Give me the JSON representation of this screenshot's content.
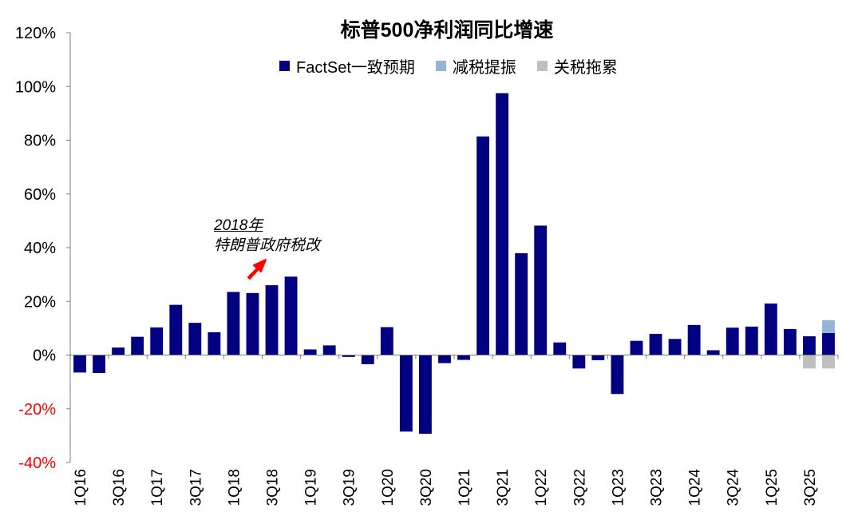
{
  "chart_data": {
    "type": "bar",
    "title": "标普500净利润同比增速",
    "categories": [
      "1Q16",
      "2Q16",
      "3Q16",
      "4Q16",
      "1Q17",
      "2Q17",
      "3Q17",
      "4Q17",
      "1Q18",
      "2Q18",
      "3Q18",
      "4Q18",
      "1Q19",
      "2Q19",
      "3Q19",
      "4Q19",
      "1Q20",
      "2Q20",
      "3Q20",
      "4Q20",
      "1Q21",
      "2Q21",
      "3Q21",
      "4Q21",
      "1Q22",
      "2Q22",
      "3Q22",
      "4Q22",
      "1Q23",
      "2Q23",
      "3Q23",
      "4Q23",
      "1Q24",
      "2Q24",
      "3Q24",
      "4Q24",
      "1Q25",
      "2Q25",
      "3Q25",
      "4Q25"
    ],
    "x_tick_labels": [
      "1Q16",
      "3Q16",
      "1Q17",
      "3Q17",
      "1Q18",
      "3Q18",
      "1Q19",
      "3Q19",
      "1Q20",
      "3Q20",
      "1Q21",
      "3Q21",
      "1Q22",
      "3Q22",
      "1Q23",
      "3Q23",
      "1Q24",
      "3Q24",
      "1Q25",
      "3Q25"
    ],
    "series": [
      {
        "name": "FactSet一致预期",
        "color": "#000080",
        "values": [
          -6.5,
          -6.7,
          2.8,
          6.8,
          10.3,
          18.7,
          12.0,
          8.5,
          23.5,
          23.1,
          26.0,
          29.2,
          2.1,
          3.6,
          -0.7,
          -3.4,
          10.4,
          -28.5,
          -29.3,
          -3.0,
          -1.8,
          81.4,
          97.5,
          37.9,
          48.2,
          4.7,
          -5.0,
          -1.9,
          -14.5,
          5.3,
          7.9,
          6.0,
          11.2,
          1.8,
          10.2,
          10.6,
          19.2,
          9.7,
          7.0,
          8.2
        ]
      },
      {
        "name": "减税提振",
        "color": "#95B3D7",
        "values": [
          0,
          0,
          0,
          0,
          0,
          0,
          0,
          0,
          0,
          0,
          0,
          0,
          0,
          0,
          0,
          0,
          0,
          0,
          0,
          0,
          0,
          0,
          0,
          0,
          0,
          0,
          0,
          0,
          0,
          0,
          0,
          0,
          0,
          0,
          0,
          0,
          0,
          0,
          0,
          4.8
        ]
      },
      {
        "name": "关税拖累",
        "color": "#BFBFBF",
        "values": [
          0,
          0,
          0,
          0,
          0,
          0,
          0,
          0,
          0,
          0,
          0,
          0,
          0,
          0,
          0,
          0,
          0,
          0,
          0,
          0,
          0,
          0,
          0,
          0,
          0,
          0,
          0,
          0,
          0,
          0,
          0,
          0,
          0,
          0,
          0,
          0,
          0,
          0,
          -5.0,
          -5.0
        ]
      }
    ],
    "ylim": [
      -40,
      120
    ],
    "y_ticks": [
      -40,
      -20,
      0,
      20,
      40,
      60,
      80,
      100,
      120
    ],
    "y_tick_labels": [
      "-40%",
      "-20%",
      "0%",
      "20%",
      "40%",
      "60%",
      "80%",
      "100%",
      "120%"
    ],
    "negative_tick_color": "#FF0000",
    "grid": false,
    "legend_position": "top",
    "annotation": {
      "line1": "2018年",
      "line2": "特朗普政府税改",
      "arrow_color": "#FF0000"
    }
  }
}
